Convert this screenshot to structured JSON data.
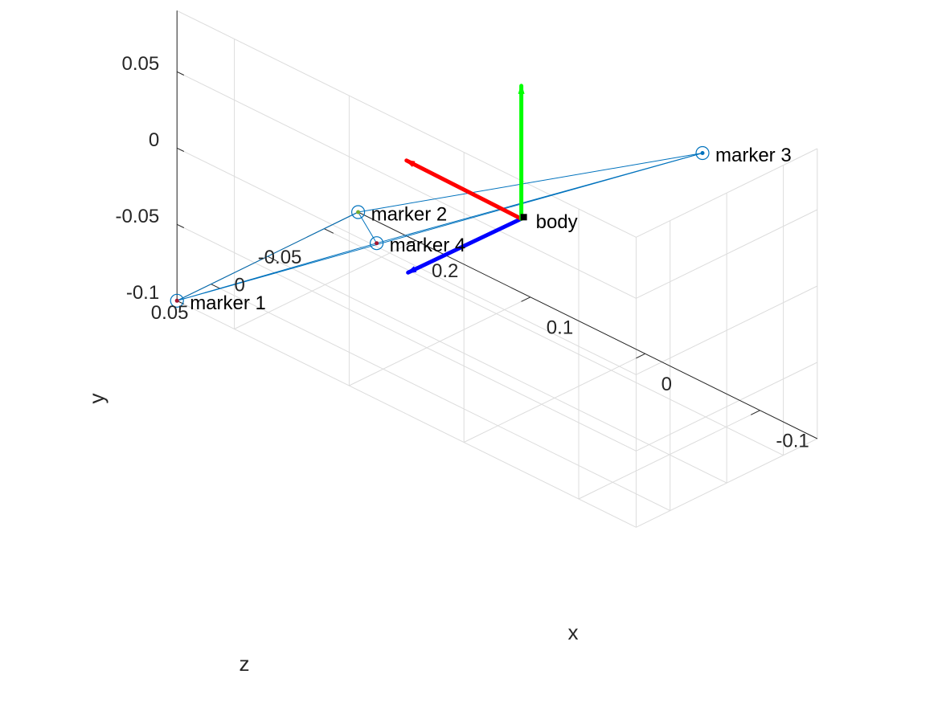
{
  "chart_data": {
    "type": "scatter3d",
    "title": "",
    "xlabel": "x",
    "ylabel": "y",
    "zlabel": "z",
    "x_ticks": [
      -0.1,
      0,
      0.1,
      0.2
    ],
    "x_tick_labels": [
      "-0.1",
      "0",
      "0.1",
      "0.2"
    ],
    "y_ticks": [
      -0.1,
      -0.05,
      0,
      0.05
    ],
    "y_tick_labels": [
      "-0.1",
      "-0.05",
      "0",
      "0.05"
    ],
    "z_ticks": [
      -0.05,
      0,
      0.05
    ],
    "z_tick_labels": [
      "-0.05",
      "0",
      "0.05"
    ],
    "xlim": [
      -0.15,
      0.25
    ],
    "ylim": [
      -0.1,
      0.09
    ],
    "zlim": [
      -0.08,
      0.08
    ],
    "grid": true,
    "markers": [
      {
        "label": "marker 1",
        "x": 0.25,
        "y": -0.1,
        "z": 0.08,
        "dot_color": "#a2142f"
      },
      {
        "label": "marker 2",
        "x": 0.25,
        "y": -0.1,
        "z": -0.08,
        "dot_color": "#77ac30"
      },
      {
        "label": "marker 3",
        "x": -0.05,
        "y": 0.05,
        "z": -0.08,
        "dot_color": "#0072bd"
      },
      {
        "label": "marker 4",
        "x": 0.079,
        "y": 0.0,
        "z": 0.077,
        "dot_color": "#a2142f"
      }
    ],
    "edges": [
      [
        0,
        1
      ],
      [
        0,
        2
      ],
      [
        0,
        3
      ],
      [
        1,
        2
      ],
      [
        1,
        3
      ],
      [
        2,
        3
      ]
    ],
    "body": {
      "label": "body",
      "origin": {
        "x": -0.05,
        "y": 0.065,
        "z": 0.08
      },
      "frame_axes": [
        {
          "axis": "x",
          "color": "#ff0000",
          "tip": {
            "x": 0.05,
            "y": 0.066,
            "z": 0.08
          }
        },
        {
          "axis": "y",
          "color": "#00ff00",
          "tip": {
            "x": -0.05,
            "y": 0.152,
            "z": 0.08
          }
        },
        {
          "axis": "z",
          "color": "#0000ff",
          "tip": {
            "x": -0.05,
            "y": 0.066,
            "z": 0.18
          }
        }
      ]
    },
    "line_color": "#0072bd"
  }
}
